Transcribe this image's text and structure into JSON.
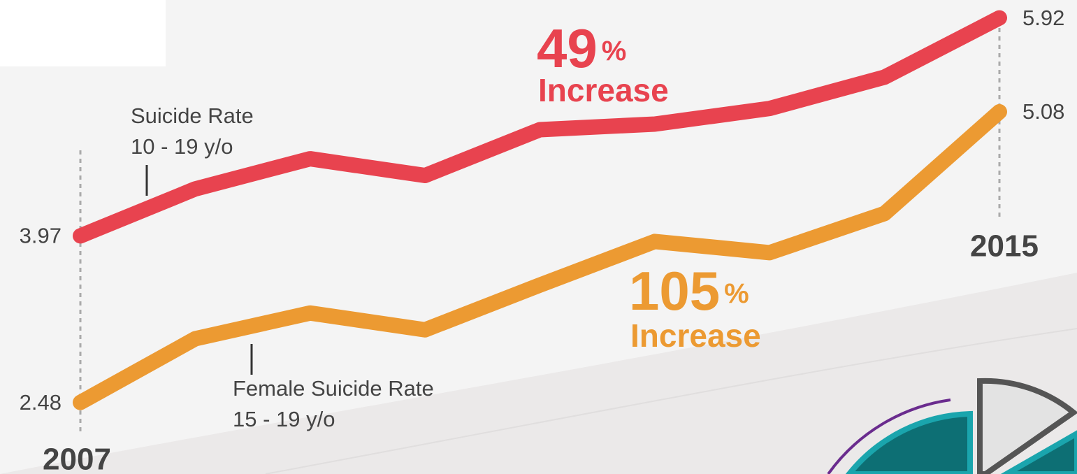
{
  "chart_data": {
    "type": "line",
    "categories": [
      "2007",
      null,
      null,
      null,
      null,
      null,
      null,
      null,
      "2015"
    ],
    "ylim": [
      1.84,
      6.08
    ],
    "series": [
      {
        "name": "Suicide Rate",
        "note": "10 - 19 y/o",
        "color": "#e8434f",
        "values": [
          3.97,
          4.39,
          4.66,
          4.51,
          4.92,
          4.97,
          5.11,
          5.39,
          5.92
        ]
      },
      {
        "name": "Female Suicide Rate",
        "note": "15 - 19 y/o",
        "color": "#ec9a32",
        "values": [
          2.48,
          3.05,
          3.28,
          3.13,
          3.53,
          3.92,
          3.82,
          4.17,
          5.08
        ]
      }
    ],
    "annotations": [
      {
        "text": "49",
        "suffix": "%",
        "label": "Increase",
        "color": "#e8434f"
      },
      {
        "text": "105",
        "suffix": "%",
        "label": "Increase",
        "color": "#ec9a32"
      }
    ]
  }
}
